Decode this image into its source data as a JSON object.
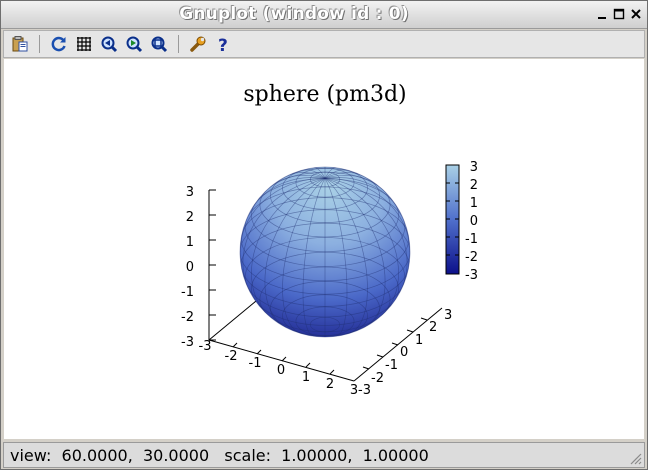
{
  "window": {
    "title": "Gnuplot (window id : 0)",
    "buttons": [
      "minimize-icon",
      "maximize-icon",
      "close-icon"
    ]
  },
  "toolbar": {
    "items": [
      {
        "name": "copy-to-clipboard-button",
        "icon": "clipboard-icon"
      },
      {
        "name": "replot-button",
        "icon": "refresh-icon"
      },
      {
        "name": "toggle-grid-button",
        "icon": "grid-icon"
      },
      {
        "name": "previous-zoom-button",
        "icon": "zoom-previous-icon"
      },
      {
        "name": "next-zoom-button",
        "icon": "zoom-next-icon"
      },
      {
        "name": "autoscale-button",
        "icon": "zoom-autoscale-icon"
      },
      {
        "name": "options-button",
        "icon": "wrench-icon"
      },
      {
        "name": "help-button",
        "icon": "help-icon"
      }
    ]
  },
  "plot": {
    "title": "sphere (pm3d)",
    "z_ticks": [
      "3",
      "2",
      "1",
      "0",
      "-1",
      "-2",
      "-3"
    ],
    "x_ticks": [
      "-3",
      "-2",
      "-1",
      "0",
      "1",
      "2",
      "3"
    ],
    "y_ticks": [
      "-3",
      "-2",
      "-1",
      "0",
      "1",
      "2",
      "3"
    ],
    "colorbar_ticks": [
      "3",
      "2",
      "1",
      "0",
      "-1",
      "-2",
      "-3"
    ],
    "colors": {
      "low": "#1a1f8a",
      "high": "#a9d0e6"
    }
  },
  "status": {
    "text": "view:  60.0000,  30.0000   scale:  1.00000,  1.00000"
  }
}
